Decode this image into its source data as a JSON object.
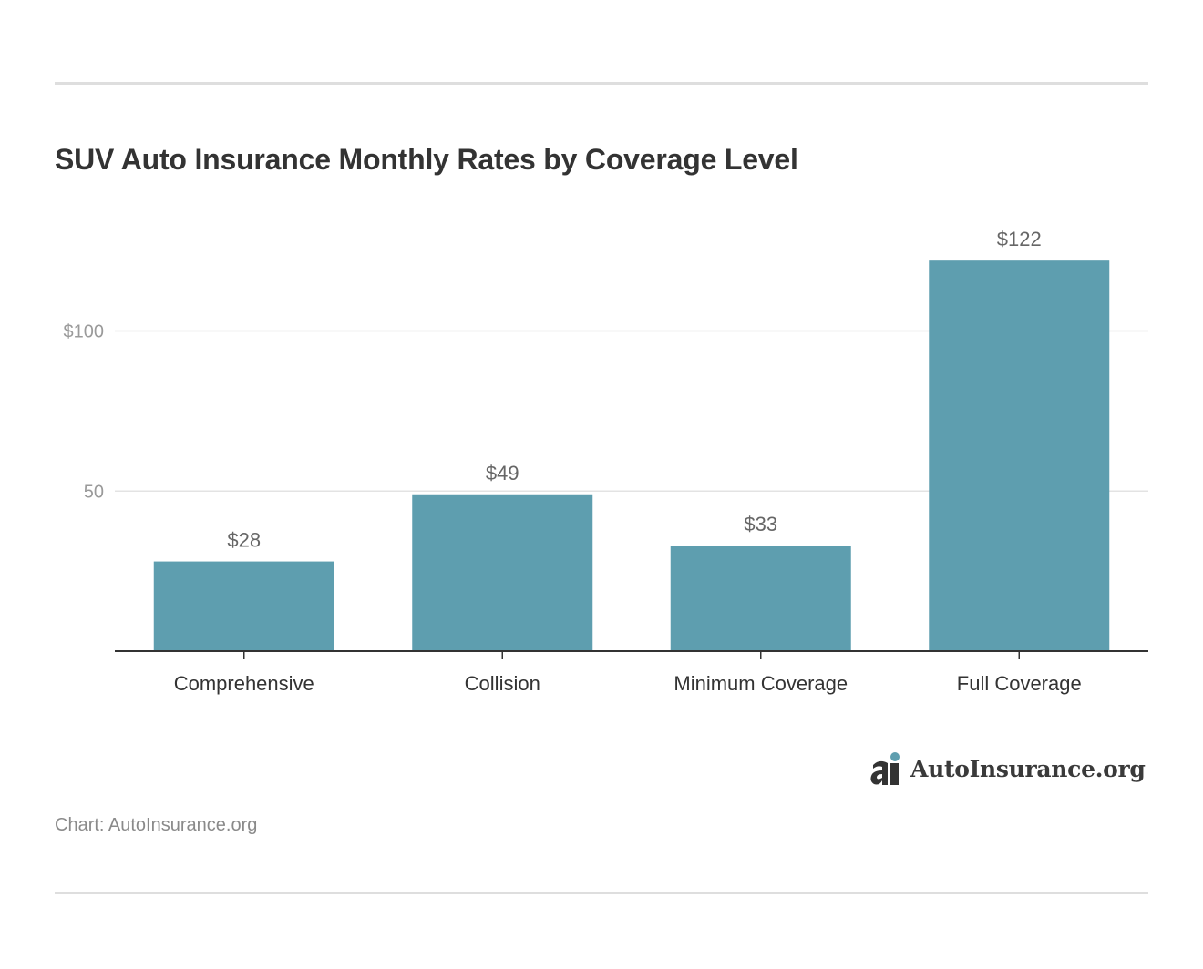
{
  "chart_data": {
    "type": "bar",
    "title": "SUV Auto Insurance Monthly Rates by Coverage Level",
    "categories": [
      "Comprehensive",
      "Collision",
      "Minimum Coverage",
      "Full Coverage"
    ],
    "values": [
      28,
      49,
      33,
      122
    ],
    "value_labels": [
      "$28",
      "$49",
      "$33",
      "$122"
    ],
    "y_ticks": [
      50,
      100
    ],
    "y_tick_labels": [
      "50",
      "$100"
    ],
    "ylim": [
      0,
      125
    ],
    "xlabel": "",
    "ylabel": "",
    "grid": true,
    "bar_color": "#5e9eaf"
  },
  "footer": {
    "brand": "AutoInsurance.org",
    "source": "Chart: AutoInsurance.org"
  },
  "colors": {
    "logo_accent": "#5e9eaf",
    "logo_dark": "#333333"
  }
}
